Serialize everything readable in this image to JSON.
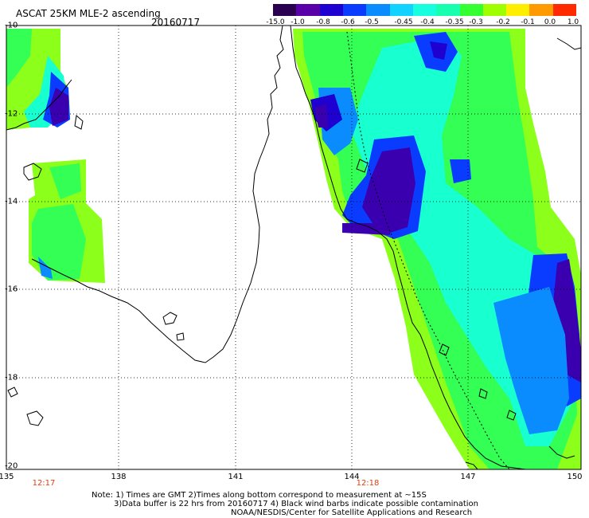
{
  "header": {
    "title": "ASCAT 25KM MLE-2 ascending",
    "date": "20160717"
  },
  "colorbar": {
    "labels": [
      "-15.0",
      "-1.0",
      "-0.8",
      "-0.6",
      "-0.5",
      "-0.45",
      "-0.4",
      "-0.35",
      "-0.3",
      "-0.2",
      "-0.1",
      "0.0",
      "1.0"
    ],
    "colors": [
      "#2a0050",
      "#5a00a8",
      "#1e00d0",
      "#0a3cff",
      "#0a8cff",
      "#12d2ff",
      "#18ffe0",
      "#18ffb0",
      "#33ff33",
      "#9fff00",
      "#ffee00",
      "#ff9a00",
      "#ff2a00"
    ]
  },
  "axes": {
    "lat_labels": [
      "-10",
      "-12",
      "-14",
      "-16",
      "-18",
      "-20"
    ],
    "lon_labels": [
      "135",
      "138",
      "141",
      "144",
      "147",
      "150"
    ]
  },
  "times": [
    "12:17",
    "12:18"
  ],
  "notes": [
    "Note: 1) Times are GMT 2)Times along bottom correspond to measurement at ~15S",
    "3)Data buffer is 22 hrs from 20160717 4) Black wind barbs indicate possible contamination",
    "NOAA/NESDIS/Center for Satellite Applications and Research"
  ]
}
